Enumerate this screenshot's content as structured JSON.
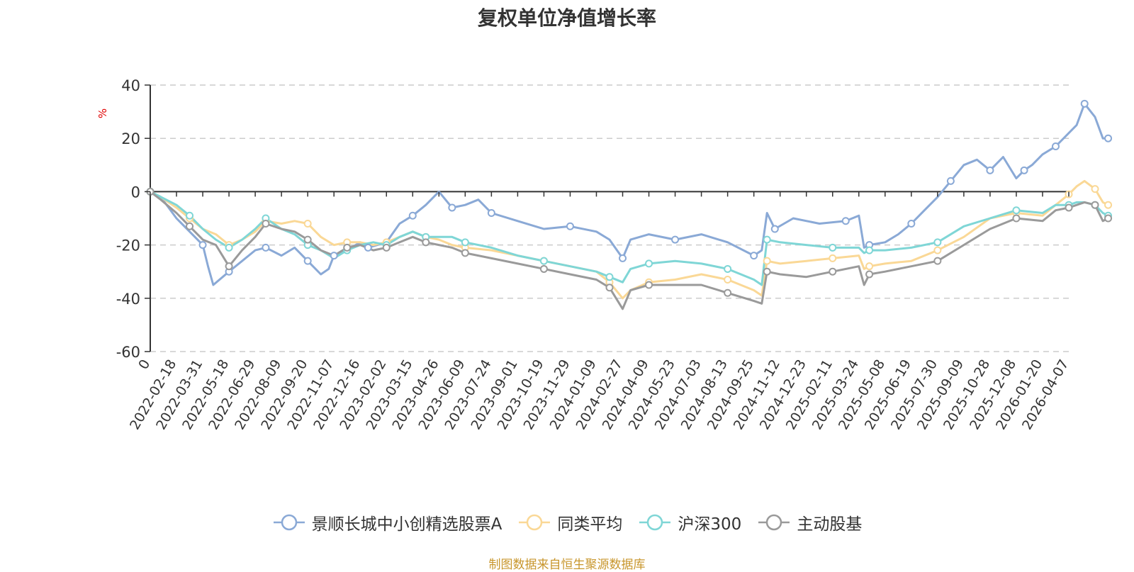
{
  "chart_data": {
    "type": "line",
    "title": "复权单位净值增长率",
    "ylabel": "%",
    "xlabel": "",
    "ylim": [
      -60,
      40
    ],
    "yticks": [
      40,
      20,
      0,
      -20,
      -40,
      -60
    ],
    "grid": true,
    "legend_position": "bottom",
    "categories": [
      "0",
      "2022-02-18",
      "2022-03-31",
      "2022-05-18",
      "2022-06-29",
      "2022-08-09",
      "2022-09-20",
      "2022-11-07",
      "2022-12-16",
      "2023-02-02",
      "2023-03-15",
      "2023-04-26",
      "2023-06-09",
      "2023-07-24",
      "2023-09-01",
      "2023-10-19",
      "2023-11-29",
      "2024-01-09",
      "2024-02-27",
      "2024-04-09",
      "2024-05-23",
      "2024-07-03",
      "2024-08-13",
      "2024-09-25",
      "2024-11-12",
      "2024-12-23",
      "2025-02-11",
      "2025-03-24",
      "2025-05-08",
      "2025-06-19",
      "2025-07-30",
      "2025-09-09",
      "2025-10-28",
      "2025-12-08",
      "2026-01-20",
      "2026-04-07"
    ],
    "series": [
      {
        "name": "景顺长城中小创精选股票A",
        "color": "#8aa9d6",
        "x": [
          0,
          0.4,
          1.0,
          2.0,
          2.2,
          2.4,
          3.0,
          3.5,
          4.0,
          4.4,
          5.0,
          5.5,
          6.0,
          6.5,
          6.8,
          7.0,
          7.5,
          8.0,
          8.3,
          9.0,
          9.5,
          10.0,
          10.5,
          11.0,
          11.5,
          12.0,
          12.5,
          13.0,
          14.0,
          15.0,
          16.0,
          17.0,
          17.5,
          18.0,
          18.3,
          19.0,
          20.0,
          21.0,
          22.0,
          23.0,
          23.3,
          23.5,
          23.8,
          24.5,
          25.5,
          26.5,
          27.0,
          27.2,
          27.4,
          28.0,
          28.5,
          29.0,
          29.5,
          30.0,
          30.5,
          31.0,
          31.5,
          32.0,
          32.5,
          33.0,
          33.3,
          33.6,
          34.0,
          34.5,
          35.0,
          35.3,
          35.6,
          36.0,
          36.3,
          36.5
        ],
        "y": [
          0,
          -2,
          -10,
          -20,
          -28,
          -35,
          -30,
          -26,
          -22,
          -21,
          -24,
          -21,
          -26,
          -31,
          -29,
          -24,
          -22,
          -19,
          -21,
          -19,
          -12,
          -9,
          -5,
          0,
          -6,
          -5,
          -3,
          -8,
          -11,
          -14,
          -13,
          -15,
          -18,
          -25,
          -18,
          -16,
          -18,
          -16,
          -19,
          -24,
          -22,
          -8,
          -14,
          -10,
          -12,
          -11,
          -9,
          -21,
          -20,
          -19,
          -16,
          -12,
          -7,
          -2,
          4,
          10,
          12,
          8,
          13,
          5,
          8,
          10,
          14,
          17,
          22,
          25,
          33,
          28,
          20,
          20
        ]
      },
      {
        "name": "同类平均",
        "color": "#fad896",
        "x": [
          0,
          0.4,
          1.0,
          1.5,
          2.0,
          2.5,
          3.0,
          3.5,
          4.0,
          4.4,
          5.0,
          5.5,
          6.0,
          6.5,
          7.0,
          7.5,
          8.0,
          8.5,
          9.0,
          9.5,
          10.0,
          10.5,
          11.0,
          11.5,
          12.0,
          13.0,
          14.0,
          15.0,
          16.0,
          17.0,
          17.5,
          18.0,
          18.3,
          19.0,
          20.0,
          21.0,
          22.0,
          23.0,
          23.3,
          23.5,
          24.0,
          25.0,
          26.0,
          27.0,
          27.2,
          27.4,
          28.0,
          29.0,
          30.0,
          31.0,
          32.0,
          33.0,
          34.0,
          34.5,
          35.0,
          35.3,
          35.6,
          36.0,
          36.3,
          36.5
        ],
        "y": [
          0,
          -2,
          -6,
          -10,
          -14,
          -16,
          -20,
          -18,
          -15,
          -11,
          -12,
          -11,
          -12,
          -17,
          -20,
          -19,
          -19,
          -20,
          -19,
          -17,
          -15,
          -17,
          -18,
          -20,
          -21,
          -22,
          -24,
          -26,
          -28,
          -30,
          -34,
          -40,
          -37,
          -34,
          -33,
          -31,
          -33,
          -37,
          -39,
          -26,
          -27,
          -26,
          -25,
          -24,
          -29,
          -28,
          -27,
          -26,
          -22,
          -17,
          -10,
          -8,
          -9,
          -5,
          -1,
          2,
          4,
          1,
          -4,
          -5
        ]
      },
      {
        "name": "沪深300",
        "color": "#7fd6d6",
        "x": [
          0,
          0.4,
          1.0,
          1.5,
          2.0,
          2.5,
          3.0,
          3.5,
          4.0,
          4.4,
          5.0,
          5.5,
          6.0,
          6.5,
          7.0,
          7.5,
          8.0,
          8.5,
          9.0,
          9.5,
          10.0,
          10.5,
          11.0,
          11.5,
          12.0,
          13.0,
          14.0,
          15.0,
          16.0,
          17.0,
          17.5,
          18.0,
          18.3,
          19.0,
          20.0,
          21.0,
          22.0,
          23.0,
          23.3,
          23.5,
          24.0,
          25.0,
          26.0,
          27.0,
          27.2,
          27.4,
          28.0,
          29.0,
          30.0,
          31.0,
          32.0,
          33.0,
          34.0,
          34.5,
          35.0,
          35.3,
          35.6,
          36.0,
          36.3,
          36.5
        ],
        "y": [
          0,
          -2,
          -5,
          -9,
          -14,
          -18,
          -21,
          -18,
          -14,
          -10,
          -14,
          -16,
          -20,
          -22,
          -25,
          -22,
          -20,
          -19,
          -20,
          -17,
          -15,
          -17,
          -17,
          -17,
          -19,
          -21,
          -24,
          -26,
          -28,
          -30,
          -32,
          -34,
          -29,
          -27,
          -26,
          -27,
          -29,
          -33,
          -35,
          -18,
          -19,
          -20,
          -21,
          -21,
          -23,
          -22,
          -22,
          -21,
          -19,
          -13,
          -10,
          -7,
          -8,
          -5,
          -5,
          -4,
          -4,
          -5,
          -8,
          -9
        ]
      },
      {
        "name": "主动股基",
        "color": "#9a9a9a",
        "x": [
          0,
          0.4,
          1.0,
          1.5,
          2.0,
          2.5,
          3.0,
          3.5,
          4.0,
          4.4,
          5.0,
          5.5,
          6.0,
          6.5,
          7.0,
          7.5,
          8.0,
          8.5,
          9.0,
          9.5,
          10.0,
          10.5,
          11.0,
          11.5,
          12.0,
          13.0,
          14.0,
          15.0,
          16.0,
          17.0,
          17.5,
          18.0,
          18.3,
          19.0,
          20.0,
          21.0,
          22.0,
          23.0,
          23.3,
          23.5,
          24.0,
          25.0,
          26.0,
          27.0,
          27.2,
          27.4,
          28.0,
          29.0,
          30.0,
          31.0,
          32.0,
          33.0,
          34.0,
          34.5,
          35.0,
          35.3,
          35.6,
          36.0,
          36.3,
          36.5
        ],
        "y": [
          0,
          -3,
          -8,
          -13,
          -18,
          -20,
          -28,
          -22,
          -17,
          -12,
          -14,
          -15,
          -18,
          -22,
          -24,
          -21,
          -20,
          -22,
          -21,
          -19,
          -17,
          -19,
          -20,
          -21,
          -23,
          -25,
          -27,
          -29,
          -31,
          -33,
          -36,
          -44,
          -37,
          -35,
          -35,
          -35,
          -38,
          -41,
          -42,
          -30,
          -31,
          -32,
          -30,
          -28,
          -35,
          -31,
          -30,
          -28,
          -26,
          -20,
          -14,
          -10,
          -11,
          -7,
          -6,
          -5,
          -4,
          -5,
          -11,
          -10
        ]
      }
    ]
  },
  "legend": [
    {
      "label": "景顺长城中小创精选股票A",
      "color": "#8aa9d6"
    },
    {
      "label": "同类平均",
      "color": "#fad896"
    },
    {
      "label": "沪深300",
      "color": "#7fd6d6"
    },
    {
      "label": "主动股基",
      "color": "#9a9a9a"
    }
  ],
  "source": "制图数据来自恒生聚源数据库"
}
